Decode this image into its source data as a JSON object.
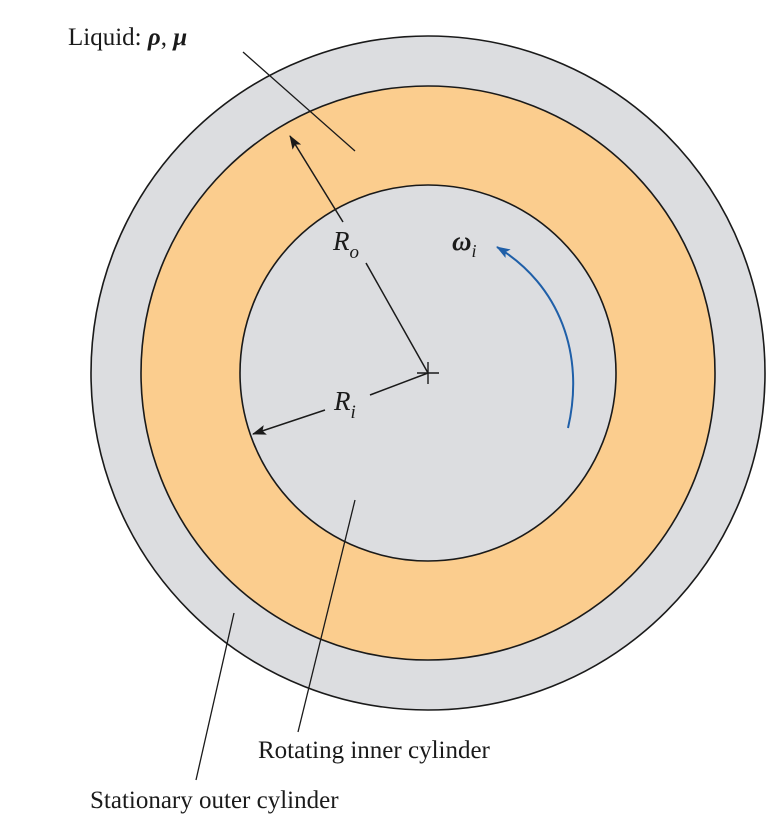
{
  "labels": {
    "liquid_prefix": "Liquid: ",
    "liquid_rho": "ρ",
    "liquid_sep": ", ",
    "liquid_mu": "μ",
    "r_outer_main": "R",
    "r_outer_sub": "o",
    "r_inner_main": "R",
    "r_inner_sub": "i",
    "omega_main": "ω",
    "omega_sub": "i",
    "rotating_inner": "Rotating inner cylinder",
    "stationary_outer": "Stationary outer cylinder"
  },
  "colors": {
    "cylinder_fill": "#dcdde0",
    "liquid_fill": "#fbcd8e",
    "outline": "#1a1a1a",
    "rotation_arrow": "#1f5fa8"
  }
}
